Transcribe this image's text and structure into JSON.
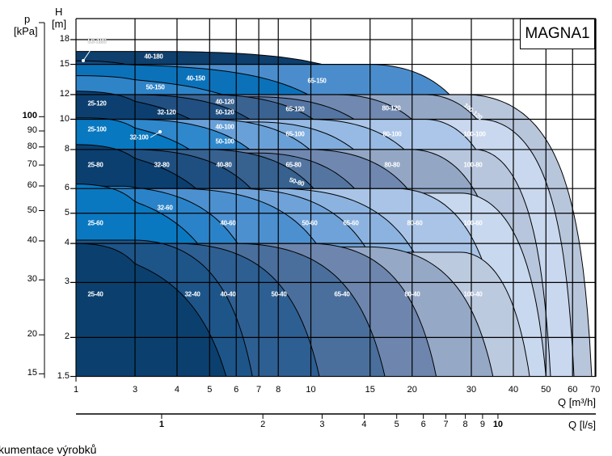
{
  "chart_data": {
    "type": "area",
    "title": "MAGNA1",
    "xlabel": "Q [m³/h]",
    "x2label": "Q [l/s]",
    "ylabel": "H [m]",
    "y2label_p": "p",
    "y2label_unit": "[kPa]",
    "xlim": [
      1,
      70
    ],
    "ylim": [
      1.5,
      18
    ],
    "x_scale": "log",
    "y_scale": "log",
    "grid": true,
    "x_ticks": [
      "1",
      "3",
      "4",
      "5",
      "6",
      "7",
      "8",
      "10",
      "15",
      "20",
      "30",
      "40",
      "50",
      "60",
      "70"
    ],
    "x2_ticks": [
      "1",
      "2",
      "3",
      "4",
      "5",
      "6",
      "7",
      "8",
      "9",
      "10"
    ],
    "y_ticks": [
      "1.5",
      "2",
      "3",
      "4",
      "5",
      "6",
      "8",
      "10",
      "12",
      "15",
      "18"
    ],
    "p_ticks": [
      "15",
      "20",
      "30",
      "40",
      "50",
      "60",
      "70",
      "80",
      "90",
      "100"
    ],
    "series": [
      {
        "name": "40-180",
        "hmax": 16.5,
        "qknee": 3.4,
        "qend": 30,
        "color": "#0e3f6d"
      },
      {
        "name": "50-180",
        "hmax": 15.4,
        "qknee": 1,
        "qend": 12,
        "color": "#17477a"
      },
      {
        "name": "65-150",
        "hmax": 15,
        "qknee": 15,
        "qend": 40,
        "color": "#4b8dcc"
      },
      {
        "name": "40-150",
        "hmax": 15,
        "qknee": 2,
        "qend": 20,
        "color": "#0b72ba"
      },
      {
        "name": "50-150",
        "hmax": 13.8,
        "qknee": 1,
        "qend": 14,
        "color": "#2f84c8"
      },
      {
        "name": "100-120",
        "hmax": 12,
        "qknee": 29,
        "qend": 68.4,
        "color": "#b8c6dc"
      },
      {
        "name": "80-120",
        "hmax": 12,
        "qknee": 22,
        "qend": 45,
        "color": "#94a7c5"
      },
      {
        "name": "65-120",
        "hmax": 12,
        "qknee": 12,
        "qend": 32,
        "color": "#7189b0"
      },
      {
        "name": "50-120",
        "hmax": 11.8,
        "qknee": 7,
        "qend": 24,
        "color": "#5576a2"
      },
      {
        "name": "40-120",
        "hmax": 12,
        "qknee": 5,
        "qend": 18,
        "color": "#3a6392"
      },
      {
        "name": "32-120",
        "hmax": 12,
        "qknee": 3,
        "qend": 12,
        "color": "#214f81"
      },
      {
        "name": "25-120",
        "hmax": 12.3,
        "qknee": 1,
        "qend": 9,
        "color": "#0c3f6f"
      },
      {
        "name": "100-100",
        "hmax": 10,
        "qknee": 32,
        "qend": 60.6,
        "color": "#c9d8ee"
      },
      {
        "name": "80-100",
        "hmax": 10,
        "qknee": 22,
        "qend": 42,
        "color": "#abc6e8"
      },
      {
        "name": "65-100",
        "hmax": 10,
        "qknee": 10,
        "qend": 30,
        "color": "#96bae3"
      },
      {
        "name": "50-100",
        "hmax": 9.8,
        "qknee": 7,
        "qend": 22,
        "color": "#80addd"
      },
      {
        "name": "40-100",
        "hmax": 10,
        "qknee": 5,
        "qend": 16,
        "color": "#69a0d8"
      },
      {
        "name": "32-100",
        "hmax": 10,
        "qknee": 3,
        "qend": 11,
        "color": "#2f87cc"
      },
      {
        "name": "25-100",
        "hmax": 10.1,
        "qknee": 1.3,
        "qend": 8,
        "color": "#0878c0"
      },
      {
        "name": "100-80",
        "hmax": 8,
        "qknee": 31,
        "qend": 51.6,
        "color": "#b7c6dd"
      },
      {
        "name": "80-80",
        "hmax": 8,
        "qknee": 20,
        "qend": 40,
        "color": "#93a7c5"
      },
      {
        "name": "65-80",
        "hmax": 8,
        "qknee": 10,
        "qend": 28,
        "color": "#7088b0"
      },
      {
        "name": "50-80",
        "hmax": 7.8,
        "qknee": 7,
        "qend": 20,
        "color": "#5475a0"
      },
      {
        "name": "40-80",
        "hmax": 8,
        "qknee": 5,
        "qend": 15,
        "color": "#37618f"
      },
      {
        "name": "32-80",
        "hmax": 8,
        "qknee": 3,
        "qend": 10,
        "color": "#1f4f80"
      },
      {
        "name": "25-80",
        "hmax": 8.3,
        "qknee": 1,
        "qend": 7.5,
        "color": "#0b3f6f"
      },
      {
        "name": "100-60",
        "hmax": 5.8,
        "qknee": 28,
        "qend": 50,
        "color": "#c8d8ee"
      },
      {
        "name": "80-60",
        "hmax": 6,
        "qknee": 18,
        "qend": 38,
        "color": "#a9c4e6"
      },
      {
        "name": "65-60",
        "hmax": 6,
        "qknee": 8,
        "qend": 26,
        "color": "#8cb3e0"
      },
      {
        "name": "50-60",
        "hmax": 6,
        "qknee": 6,
        "qend": 19,
        "color": "#6fa2d8"
      },
      {
        "name": "40-60",
        "hmax": 6,
        "qknee": 4,
        "qend": 14,
        "color": "#4d90d0"
      },
      {
        "name": "32-60",
        "hmax": 6.1,
        "qknee": 2.5,
        "qend": 8,
        "color": "#2a83c8"
      },
      {
        "name": "25-60",
        "hmax": 6.2,
        "qknee": 1,
        "qend": 6.5,
        "color": "#0a78c0"
      },
      {
        "name": "100-40",
        "hmax": 3.75,
        "qknee": 28,
        "qend": 44.7,
        "color": "#bccadf"
      },
      {
        "name": "80-40",
        "hmax": 3.9,
        "qknee": 15,
        "qend": 34.8,
        "color": "#95a8c6"
      },
      {
        "name": "65-40",
        "hmax": 4,
        "qknee": 10,
        "qend": 23.6,
        "color": "#6e86ad"
      },
      {
        "name": "50-40",
        "hmax": 4,
        "qknee": 6,
        "qend": 16.6,
        "color": "#4a6f9c"
      },
      {
        "name": "40-40",
        "hmax": 4,
        "qknee": 4,
        "qend": 10.6,
        "color": "#2e5f92"
      },
      {
        "name": "32-40",
        "hmax": 4.1,
        "qknee": 3,
        "qend": 6.7,
        "color": "#1d5589"
      },
      {
        "name": "25-40",
        "hmax": 4,
        "qknee": 1,
        "qend": 5.6,
        "color": "#0b406e"
      }
    ]
  },
  "brand": "MAGNA1",
  "footer": "kumentace výrobků"
}
